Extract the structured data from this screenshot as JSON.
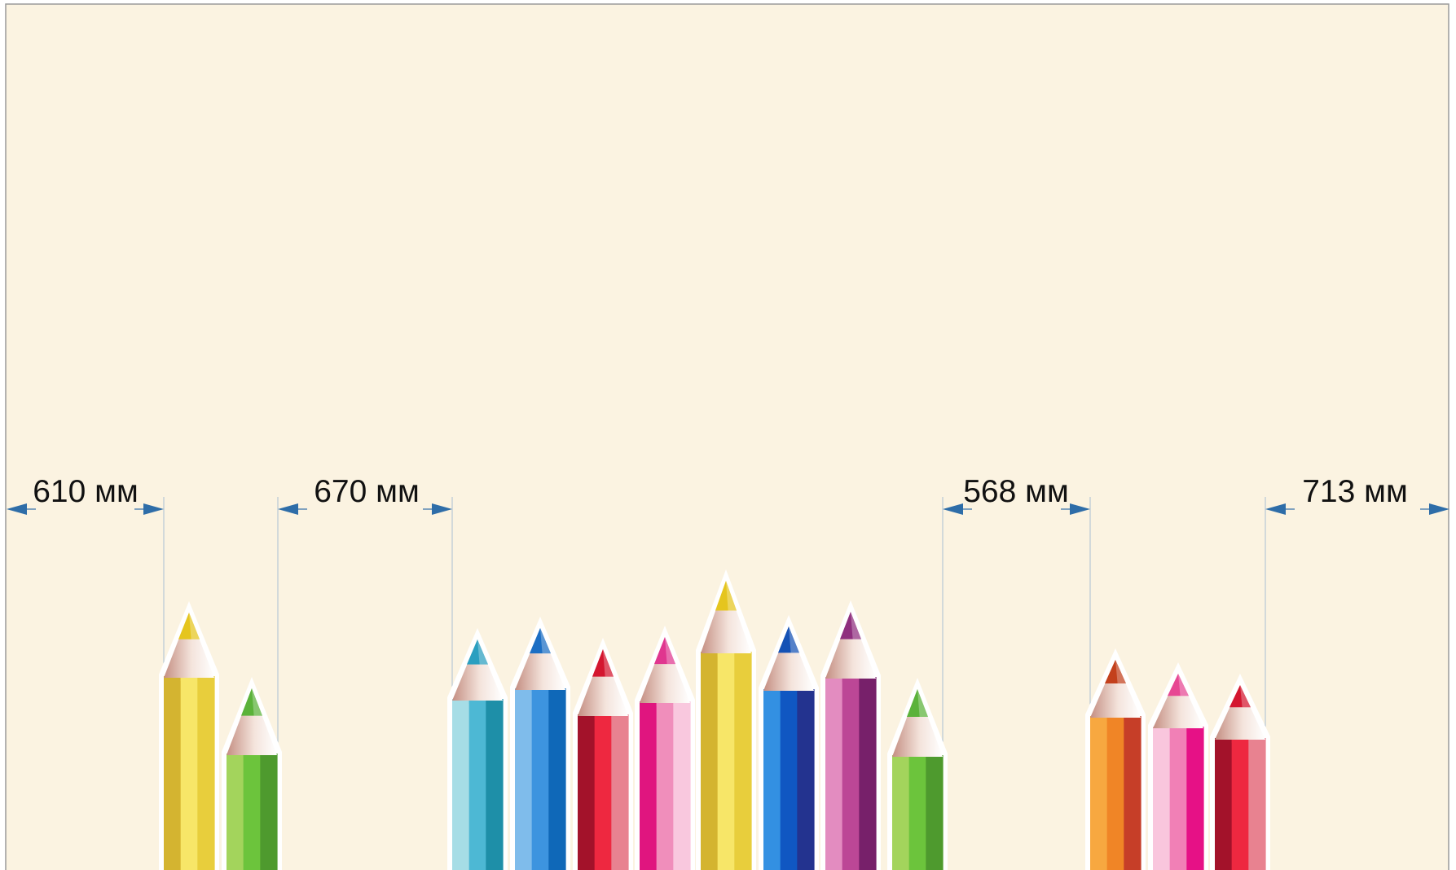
{
  "panel": {
    "background": "#FBF3E1",
    "border": "#9A9A9A"
  },
  "dimensions": [
    {
      "label": "610 мм"
    },
    {
      "label": "670 мм"
    },
    {
      "label": "568 мм"
    },
    {
      "label": "713 мм"
    }
  ],
  "dimension_arrow_color": "#2E6DA8",
  "pencil_groups": [
    {
      "pencils": [
        "yellow",
        "green"
      ]
    },
    {
      "pencils": [
        "teal",
        "blue",
        "red",
        "pink",
        "yellow",
        "dark-blue",
        "purple",
        "green"
      ]
    },
    {
      "pencils": [
        "orange",
        "light-pink",
        "red"
      ]
    }
  ],
  "colors": {
    "yellow": {
      "body": [
        "#D4B430",
        "#F7E668",
        "#E8CE3C"
      ],
      "tip": "#E5C51E"
    },
    "green": {
      "body": [
        "#A3D45C",
        "#6CC43C",
        "#4E9A2E"
      ],
      "tip": "#5BB23A"
    },
    "teal": {
      "body": [
        "#A6DDE6",
        "#4DB8D4",
        "#1E8FA8"
      ],
      "tip": "#2A9FC0"
    },
    "blue": {
      "body": [
        "#7FBCEB",
        "#3D94DF",
        "#0F68B8"
      ],
      "tip": "#1B6EC4"
    },
    "red": {
      "body": [
        "#A3122A",
        "#EE2840",
        "#E88290"
      ],
      "tip": "#D4162F"
    },
    "pink": {
      "body": [
        "#E0157F",
        "#F08EBB",
        "#F9C8DE"
      ],
      "tip": "#E0368F"
    },
    "dark-blue": {
      "body": [
        "#3390E2",
        "#1057C2",
        "#23338F"
      ],
      "tip": "#1451B5"
    },
    "purple": {
      "body": [
        "#E38CC0",
        "#BC4796",
        "#77206A"
      ],
      "tip": "#8F2F7E"
    },
    "orange": {
      "body": [
        "#F7A840",
        "#F08526",
        "#C63E28"
      ],
      "tip": "#C3401C"
    },
    "light-pink": {
      "body": [
        "#F9C6DD",
        "#F180B6",
        "#E61186"
      ],
      "tip": "#E74793"
    },
    "wood": [
      "#C48E82",
      "#F4E4DC",
      "#FFFFFF"
    ]
  }
}
